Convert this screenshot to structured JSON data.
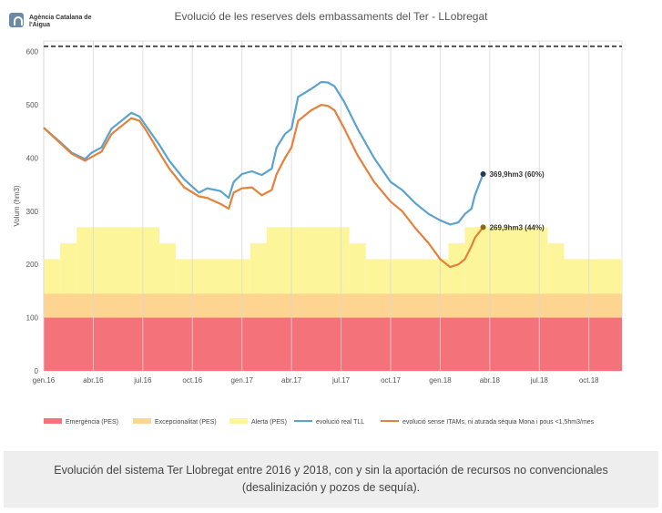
{
  "logo": {
    "text": "Agència Catalana de l'Aigua",
    "color": "#6a8aa8"
  },
  "chart_data": {
    "type": "line",
    "title": "Evolució de les reserves dels embassaments del Ter - LLobregat",
    "ylabel": "Volum (hm3)",
    "xlabel": "",
    "xlim": [
      0,
      35
    ],
    "ylim": [
      0,
      620
    ],
    "x_ticks": [
      {
        "x": 0,
        "label": "gen.16"
      },
      {
        "x": 3,
        "label": "abr.16"
      },
      {
        "x": 6,
        "label": "jul.16"
      },
      {
        "x": 9,
        "label": "oct.16"
      },
      {
        "x": 12,
        "label": "gen.17"
      },
      {
        "x": 15,
        "label": "abr.17"
      },
      {
        "x": 18,
        "label": "jul.17"
      },
      {
        "x": 21,
        "label": "oct.17"
      },
      {
        "x": 24,
        "label": "gen.18"
      },
      {
        "x": 27,
        "label": "abr.18"
      },
      {
        "x": 30,
        "label": "jul.18"
      },
      {
        "x": 33,
        "label": "oct.18"
      }
    ],
    "y_ticks": [
      0,
      100,
      200,
      300,
      400,
      500,
      600
    ],
    "grid": "vertical",
    "capacity_line": 610,
    "bands": [
      {
        "name": "Emergència (PES)",
        "color": "#f4727a",
        "steps": [
          {
            "x0": 0,
            "x1": 35,
            "top": 100
          }
        ]
      },
      {
        "name": "Excepcionalitat (PES)",
        "color": "#fdd490",
        "steps": [
          {
            "x0": 0,
            "x1": 35,
            "top": 145
          }
        ]
      },
      {
        "name": "Alerta (PES)",
        "color": "#fdf59a",
        "steps": [
          {
            "x0": 0,
            "x1": 1,
            "top": 210
          },
          {
            "x0": 1,
            "x1": 2,
            "top": 240
          },
          {
            "x0": 2,
            "x1": 7,
            "top": 270
          },
          {
            "x0": 7,
            "x1": 8,
            "top": 240
          },
          {
            "x0": 8,
            "x1": 12.5,
            "top": 210
          },
          {
            "x0": 12.5,
            "x1": 13.5,
            "top": 240
          },
          {
            "x0": 13.5,
            "x1": 18.5,
            "top": 270
          },
          {
            "x0": 18.5,
            "x1": 19.5,
            "top": 240
          },
          {
            "x0": 19.5,
            "x1": 24.5,
            "top": 210
          },
          {
            "x0": 24.5,
            "x1": 25.5,
            "top": 240
          },
          {
            "x0": 25.5,
            "x1": 30.5,
            "top": 270
          },
          {
            "x0": 30.5,
            "x1": 31.5,
            "top": 240
          },
          {
            "x0": 31.5,
            "x1": 35,
            "top": 210
          }
        ]
      }
    ],
    "series": [
      {
        "name": "evolució real TLL",
        "color": "#5ba3cf",
        "points": [
          [
            0,
            457
          ],
          [
            1,
            430
          ],
          [
            1.7,
            410
          ],
          [
            2.5,
            398
          ],
          [
            2.9,
            410
          ],
          [
            3.5,
            420
          ],
          [
            4.1,
            455
          ],
          [
            4.7,
            470
          ],
          [
            5.3,
            485
          ],
          [
            5.8,
            478
          ],
          [
            6.2,
            460
          ],
          [
            7,
            425
          ],
          [
            7.6,
            395
          ],
          [
            8.5,
            360
          ],
          [
            9.4,
            335
          ],
          [
            9.9,
            343
          ],
          [
            10.7,
            338
          ],
          [
            11.2,
            325
          ],
          [
            11.5,
            355
          ],
          [
            12,
            370
          ],
          [
            12.6,
            375
          ],
          [
            13.2,
            368
          ],
          [
            13.8,
            380
          ],
          [
            14.1,
            420
          ],
          [
            14.6,
            445
          ],
          [
            15,
            455
          ],
          [
            15.4,
            515
          ],
          [
            16.2,
            530
          ],
          [
            16.8,
            543
          ],
          [
            17.2,
            542
          ],
          [
            17.6,
            535
          ],
          [
            18.2,
            505
          ],
          [
            19,
            455
          ],
          [
            20,
            400
          ],
          [
            21,
            355
          ],
          [
            21.7,
            340
          ],
          [
            22.5,
            315
          ],
          [
            23.3,
            295
          ],
          [
            24,
            283
          ],
          [
            24.6,
            275
          ],
          [
            25.1,
            279
          ],
          [
            25.5,
            295
          ],
          [
            25.9,
            305
          ],
          [
            26.1,
            330
          ],
          [
            26.6,
            370
          ]
        ]
      },
      {
        "name": "evolució sense ITAMs, ni aturada sèquia Mona i pous <1,5hm3/mes",
        "color": "#e4813b",
        "points": [
          [
            0,
            457
          ],
          [
            1,
            428
          ],
          [
            1.7,
            408
          ],
          [
            2.5,
            395
          ],
          [
            2.9,
            402
          ],
          [
            3.5,
            412
          ],
          [
            4.1,
            445
          ],
          [
            4.7,
            460
          ],
          [
            5.3,
            475
          ],
          [
            5.8,
            470
          ],
          [
            6.2,
            452
          ],
          [
            7,
            410
          ],
          [
            7.6,
            380
          ],
          [
            8.5,
            345
          ],
          [
            9.4,
            328
          ],
          [
            9.9,
            325
          ],
          [
            10.7,
            314
          ],
          [
            11.2,
            305
          ],
          [
            11.5,
            335
          ],
          [
            12,
            343
          ],
          [
            12.6,
            345
          ],
          [
            13.2,
            330
          ],
          [
            13.8,
            340
          ],
          [
            14.1,
            370
          ],
          [
            14.6,
            400
          ],
          [
            15,
            420
          ],
          [
            15.4,
            470
          ],
          [
            16.2,
            490
          ],
          [
            16.8,
            500
          ],
          [
            17.2,
            498
          ],
          [
            17.6,
            490
          ],
          [
            18.2,
            455
          ],
          [
            19,
            405
          ],
          [
            20,
            355
          ],
          [
            21,
            318
          ],
          [
            21.7,
            300
          ],
          [
            22.5,
            268
          ],
          [
            23.3,
            240
          ],
          [
            24,
            210
          ],
          [
            24.6,
            195
          ],
          [
            25.1,
            200
          ],
          [
            25.5,
            210
          ],
          [
            25.9,
            235
          ],
          [
            26.1,
            250
          ],
          [
            26.6,
            270
          ]
        ]
      }
    ],
    "annotations": [
      {
        "series": 0,
        "text": "369,9hm3 (60%)"
      },
      {
        "series": 1,
        "text": "269,9hm3 (44%)"
      }
    ],
    "legend_position": "bottom"
  },
  "caption": "Evolución del sistema Ter Llobregat entre 2016 y 2018, con y sin la aportación de recursos no convencionales (desalinización y pozos de sequía)."
}
